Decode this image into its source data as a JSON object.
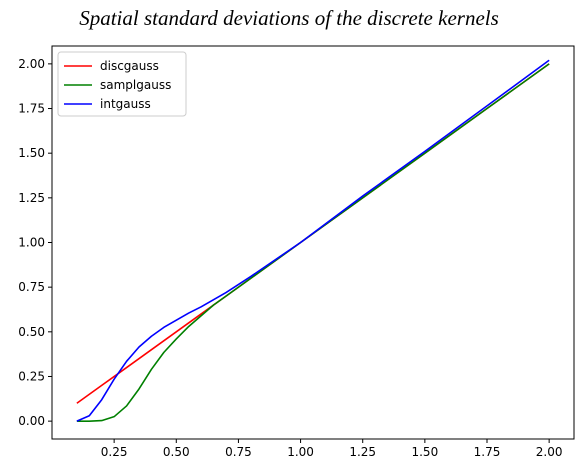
{
  "chart_data": {
    "type": "line",
    "title": "Spatial standard deviations of the discrete kernels",
    "xlabel": "",
    "ylabel": "",
    "xlim": [
      0.0,
      2.1
    ],
    "ylim": [
      -0.1,
      2.1
    ],
    "x_ticks": [
      0.25,
      0.5,
      0.75,
      1.0,
      1.25,
      1.5,
      1.75,
      2.0
    ],
    "x_tick_labels": [
      "0.25",
      "0.50",
      "0.75",
      "1.00",
      "1.25",
      "1.50",
      "1.75",
      "2.00"
    ],
    "y_ticks": [
      0.0,
      0.25,
      0.5,
      0.75,
      1.0,
      1.25,
      1.5,
      1.75,
      2.0
    ],
    "y_tick_labels": [
      "0.00",
      "0.25",
      "0.50",
      "0.75",
      "1.00",
      "1.25",
      "1.50",
      "1.75",
      "2.00"
    ],
    "grid": false,
    "legend_position": "top-left",
    "series": [
      {
        "name": "discgauss",
        "color": "#ff0000",
        "x": [
          0.1,
          0.2,
          0.3,
          0.4,
          0.5,
          0.6,
          0.7,
          0.8,
          1.0,
          1.25,
          1.5,
          1.75,
          2.0
        ],
        "y": [
          0.1,
          0.2,
          0.3,
          0.4,
          0.5,
          0.6,
          0.7,
          0.8,
          1.0,
          1.25,
          1.5,
          1.75,
          2.0
        ]
      },
      {
        "name": "samplgauss",
        "color": "#008000",
        "x": [
          0.1,
          0.15,
          0.2,
          0.25,
          0.3,
          0.35,
          0.4,
          0.45,
          0.5,
          0.55,
          0.6,
          0.65,
          0.7,
          0.8,
          1.0,
          1.25,
          1.5,
          1.75,
          2.0
        ],
        "y": [
          0.0,
          0.0,
          0.003,
          0.025,
          0.085,
          0.18,
          0.29,
          0.385,
          0.46,
          0.53,
          0.59,
          0.65,
          0.7,
          0.8,
          1.0,
          1.25,
          1.5,
          1.75,
          2.0
        ]
      },
      {
        "name": "intgauss",
        "color": "#0000ff",
        "x": [
          0.1,
          0.15,
          0.2,
          0.25,
          0.3,
          0.35,
          0.4,
          0.45,
          0.5,
          0.55,
          0.6,
          0.7,
          0.8,
          1.0,
          1.25,
          1.5,
          1.75,
          2.0
        ],
        "y": [
          0.0,
          0.03,
          0.12,
          0.235,
          0.335,
          0.415,
          0.475,
          0.525,
          0.565,
          0.605,
          0.64,
          0.72,
          0.81,
          1.0,
          1.26,
          1.51,
          1.765,
          2.02
        ]
      }
    ]
  }
}
